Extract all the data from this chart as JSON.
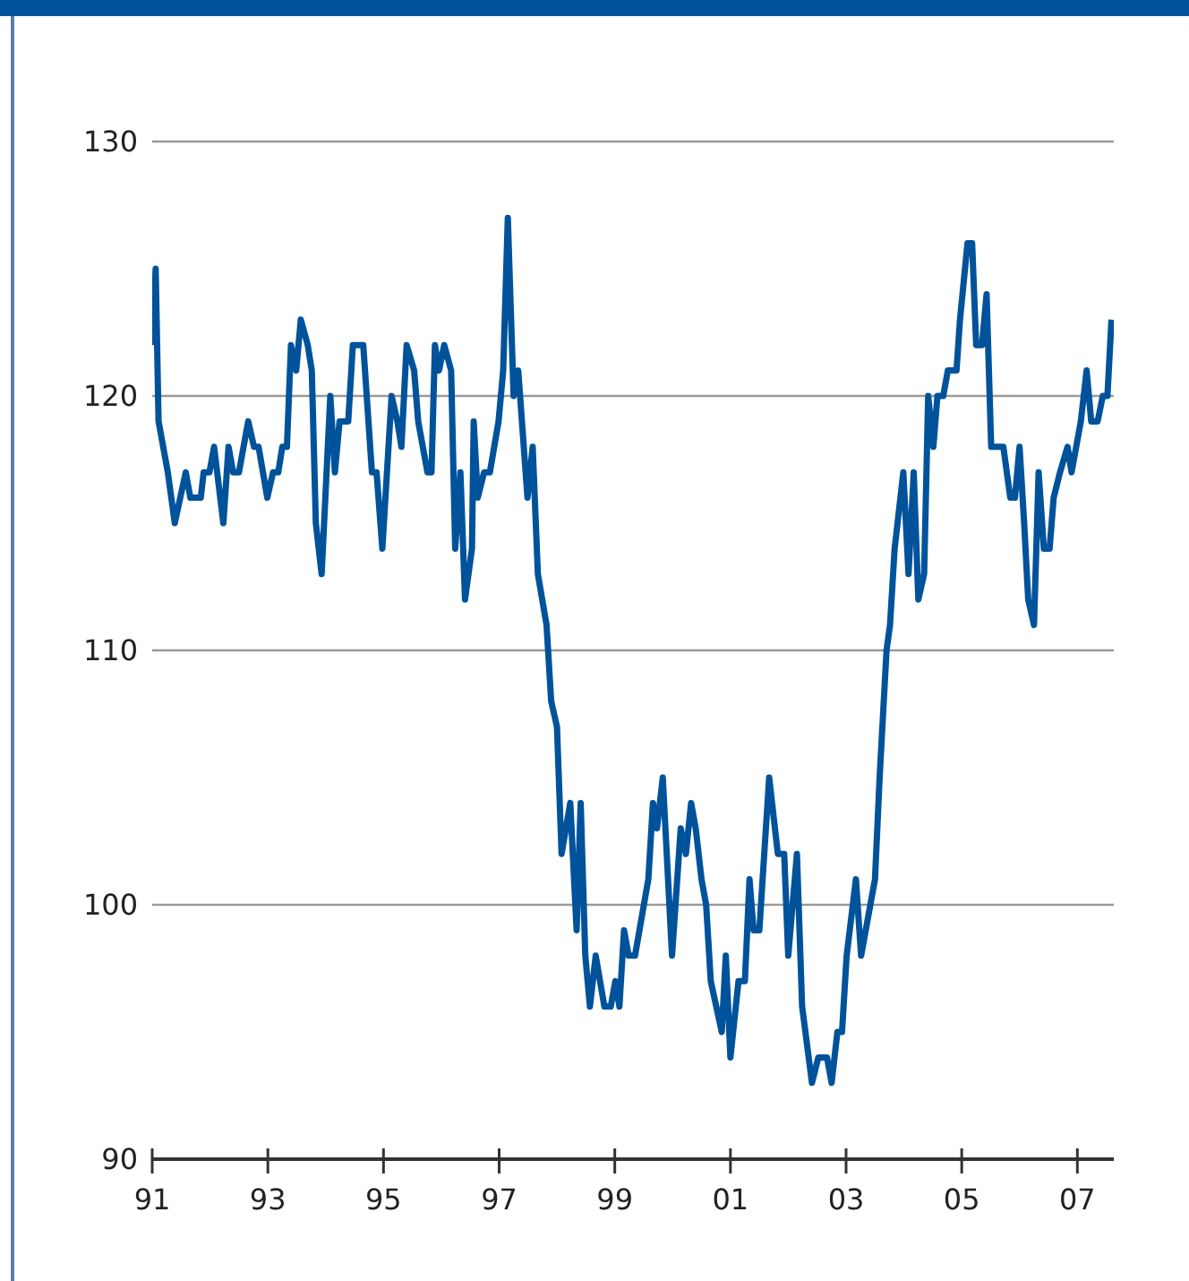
{
  "chart_data": {
    "type": "line",
    "x": [
      1991.0,
      1991.06,
      1991.11,
      1991.27,
      1991.39,
      1991.58,
      1991.66,
      1991.84,
      1991.89,
      1991.99,
      1992.07,
      1992.23,
      1992.32,
      1992.4,
      1992.5,
      1992.66,
      1992.76,
      1992.84,
      1992.99,
      1993.09,
      1993.18,
      1993.25,
      1993.33,
      1993.4,
      1993.49,
      1993.57,
      1993.69,
      1993.76,
      1993.83,
      1993.93,
      1994.08,
      1994.16,
      1994.24,
      1994.39,
      1994.47,
      1994.65,
      1994.8,
      1994.88,
      1994.98,
      1995.14,
      1995.24,
      1995.31,
      1995.4,
      1995.53,
      1995.6,
      1995.76,
      1995.83,
      1995.89,
      1995.96,
      1996.05,
      1996.17,
      1996.24,
      1996.33,
      1996.41,
      1996.53,
      1996.56,
      1996.63,
      1996.74,
      1996.84,
      1996.99,
      1997.07,
      1997.15,
      1997.25,
      1997.33,
      1997.49,
      1997.58,
      1997.67,
      1997.82,
      1997.9,
      1998.0,
      1998.08,
      1998.23,
      1998.34,
      1998.41,
      1998.49,
      1998.57,
      1998.67,
      1998.82,
      1998.93,
      1999.01,
      1999.08,
      1999.16,
      1999.24,
      1999.35,
      1999.58,
      1999.66,
      1999.73,
      1999.83,
      1999.99,
      2000.14,
      2000.23,
      2000.32,
      2000.4,
      2000.5,
      2000.58,
      2000.66,
      2000.85,
      2000.92,
      2001.0,
      2001.14,
      2001.25,
      2001.33,
      2001.4,
      2001.5,
      2001.67,
      2001.82,
      2001.93,
      2002.0,
      2002.15,
      2002.24,
      2002.41,
      2002.52,
      2002.67,
      2002.75,
      2002.85,
      2002.93,
      2003.01,
      2003.17,
      2003.26,
      2003.5,
      2003.58,
      2003.7,
      2003.76,
      2003.84,
      2003.99,
      2004.08,
      2004.17,
      2004.25,
      2004.35,
      2004.42,
      2004.51,
      2004.58,
      2004.68,
      2004.76,
      2004.91,
      2004.97,
      2005.1,
      2005.18,
      2005.25,
      2005.35,
      2005.43,
      2005.51,
      2005.72,
      2005.84,
      2005.92,
      2006.0,
      2006.08,
      2006.15,
      2006.25,
      2006.33,
      2006.42,
      2006.52,
      2006.59,
      2006.7,
      2006.83,
      2006.9,
      2007.06,
      2007.16,
      2007.24,
      2007.35,
      2007.44,
      2007.52,
      2007.59
    ],
    "series": [
      {
        "color": "#00529b",
        "values": [
          122,
          125,
          119,
          117,
          115,
          117,
          116,
          116,
          117,
          117,
          118,
          115,
          118,
          117,
          117,
          119,
          118,
          118,
          116,
          117,
          117,
          118,
          118,
          122,
          121,
          123,
          122,
          121,
          115,
          113,
          120,
          117,
          119,
          119,
          122,
          122,
          117,
          117,
          114,
          120,
          119,
          118,
          122,
          121,
          119,
          117,
          117,
          122,
          121,
          122,
          121,
          114,
          117,
          112,
          114,
          119,
          116,
          117,
          117,
          119,
          121,
          127,
          120,
          121,
          116,
          118,
          113,
          111,
          108,
          107,
          102,
          104,
          99,
          104,
          98,
          96,
          98,
          96,
          96,
          97,
          96,
          99,
          98,
          98,
          101,
          104,
          103,
          105,
          98,
          103,
          102,
          104,
          103,
          101,
          100,
          97,
          95,
          98,
          94,
          97,
          97,
          101,
          99,
          99,
          105,
          102,
          102,
          98,
          102,
          96,
          93,
          94,
          94,
          93,
          95,
          95,
          98,
          101,
          98,
          101,
          105,
          110,
          111,
          114,
          117,
          113,
          117,
          112,
          113,
          120,
          118,
          120,
          120,
          121,
          121,
          123,
          126,
          126,
          122,
          122,
          124,
          118,
          118,
          116,
          116,
          118,
          115,
          112,
          111,
          117,
          114,
          114,
          116,
          117,
          118,
          117,
          119,
          121,
          119,
          119,
          120,
          120,
          123
        ]
      }
    ],
    "xlim": [
      1991,
      2007.63
    ],
    "xticks": [
      {
        "value": 1991,
        "label": "91"
      },
      {
        "value": 1993,
        "label": "93"
      },
      {
        "value": 1995,
        "label": "95"
      },
      {
        "value": 1997,
        "label": "97"
      },
      {
        "value": 1999,
        "label": "99"
      },
      {
        "value": 2001,
        "label": "01"
      },
      {
        "value": 2003,
        "label": "03"
      },
      {
        "value": 2005,
        "label": "05"
      },
      {
        "value": 2007,
        "label": "07"
      }
    ],
    "ylim": [
      90,
      130
    ],
    "yticks": [
      90,
      100,
      110,
      120,
      130
    ],
    "grid": "y",
    "legend": false,
    "marker": "none",
    "line_style": "solid"
  }
}
